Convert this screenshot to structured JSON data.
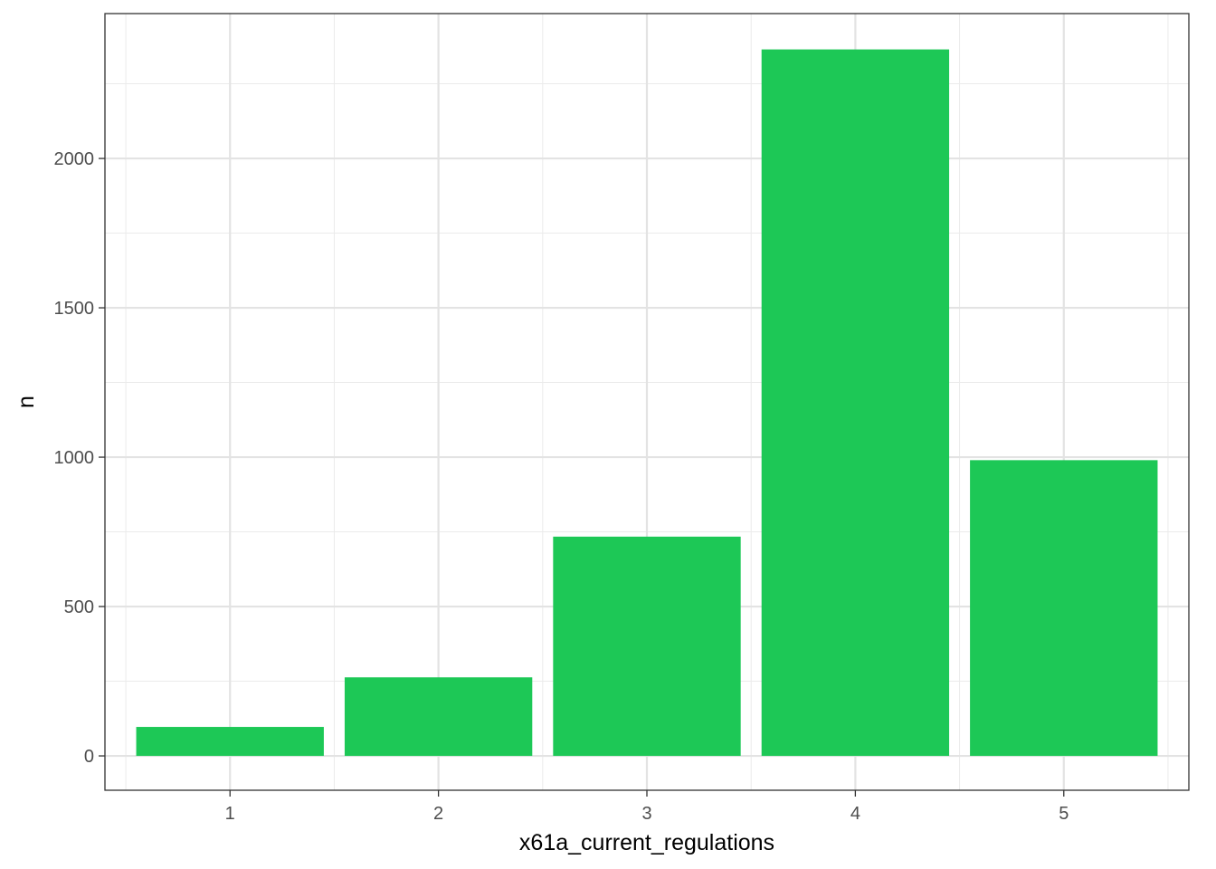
{
  "chart_data": {
    "type": "bar",
    "categories": [
      "1",
      "2",
      "3",
      "4",
      "5"
    ],
    "values": [
      97,
      263,
      734,
      2365,
      990
    ],
    "xlabel": "x61a_current_regulations",
    "ylabel": "n",
    "ylim": [
      -115,
      2485
    ],
    "yticks": [
      0,
      500,
      1000,
      1500,
      2000
    ],
    "y_minor_ticks": [
      250,
      750,
      1250,
      1750,
      2250
    ],
    "bar_color": "#1DC856",
    "grid": true,
    "legend": "none"
  }
}
